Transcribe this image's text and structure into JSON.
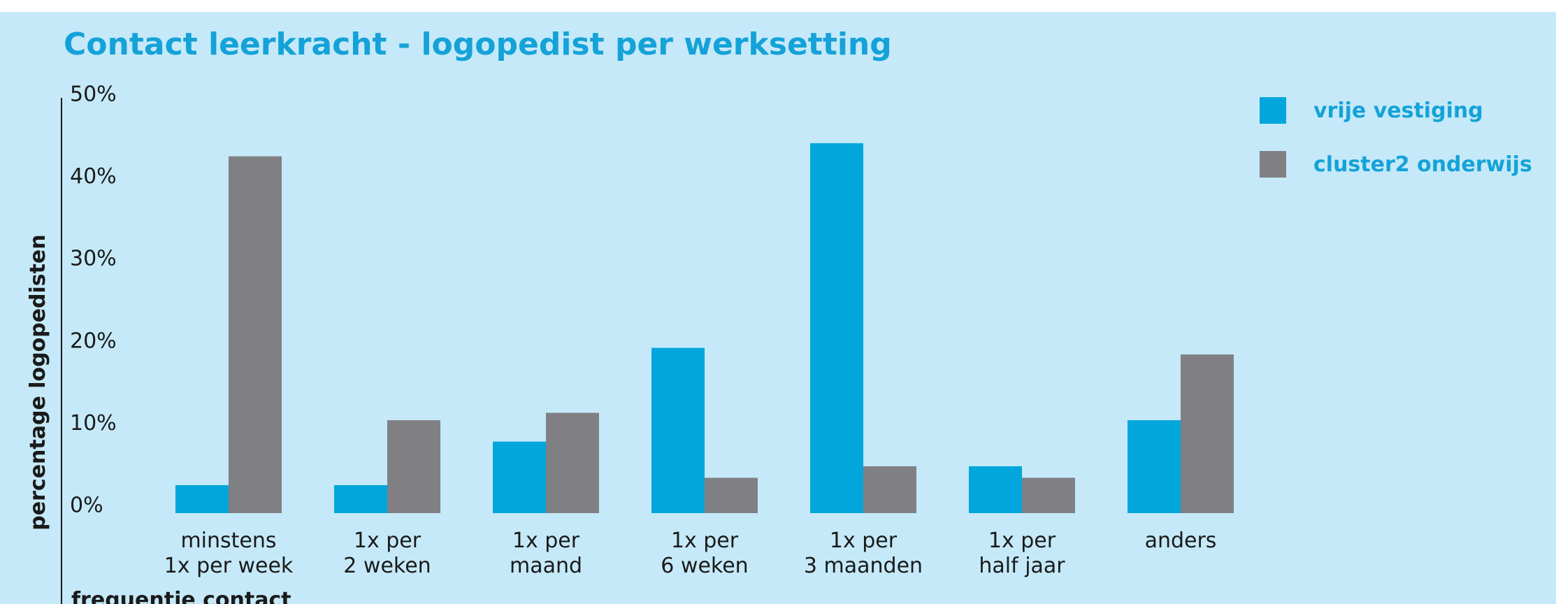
{
  "chart_data": {
    "type": "bar",
    "title": "Contact leerkracht - logopedist per werksetting",
    "y_label": "percentage logopedisten",
    "x_label": "frequentie contact",
    "categories": [
      [
        "minstens",
        "1x per week"
      ],
      [
        "1x per",
        "2 weken"
      ],
      [
        "1x per",
        "maand"
      ],
      [
        "1x per",
        "6 weken"
      ],
      [
        "1x per",
        "3 maanden"
      ],
      [
        "1x per",
        "half jaar"
      ],
      [
        "anders"
      ]
    ],
    "series": [
      {
        "name": "vrije vestiging",
        "color": "#00a6dc",
        "values": [
          3.4,
          3.4,
          8.7,
          20.1,
          45,
          5.7,
          11.3
        ]
      },
      {
        "name": "cluster2 onderwijs",
        "color": "#808084",
        "values": [
          43.4,
          11.3,
          12.2,
          4.3,
          5.7,
          4.3,
          19.3
        ]
      }
    ],
    "ylim": [
      0,
      50
    ],
    "yticks": [
      {
        "value": 0,
        "label": "0%"
      },
      {
        "value": 10,
        "label": "10%"
      },
      {
        "value": 20,
        "label": "20%"
      },
      {
        "value": 30,
        "label": "30%"
      },
      {
        "value": 40,
        "label": "40%"
      },
      {
        "value": 50,
        "label": "50%"
      }
    ],
    "grid": false,
    "legend": "top-right"
  }
}
